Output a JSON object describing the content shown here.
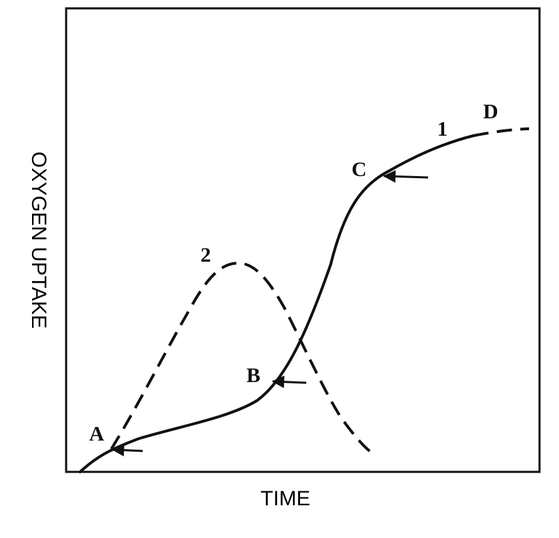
{
  "axes": {
    "x_label": "TIME",
    "y_label": "OXYGEN UPTAKE"
  },
  "curves": [
    {
      "label": "1"
    },
    {
      "label": "2"
    }
  ],
  "points": [
    {
      "label": "A"
    },
    {
      "label": "B"
    },
    {
      "label": "C"
    },
    {
      "label": "D"
    }
  ]
}
